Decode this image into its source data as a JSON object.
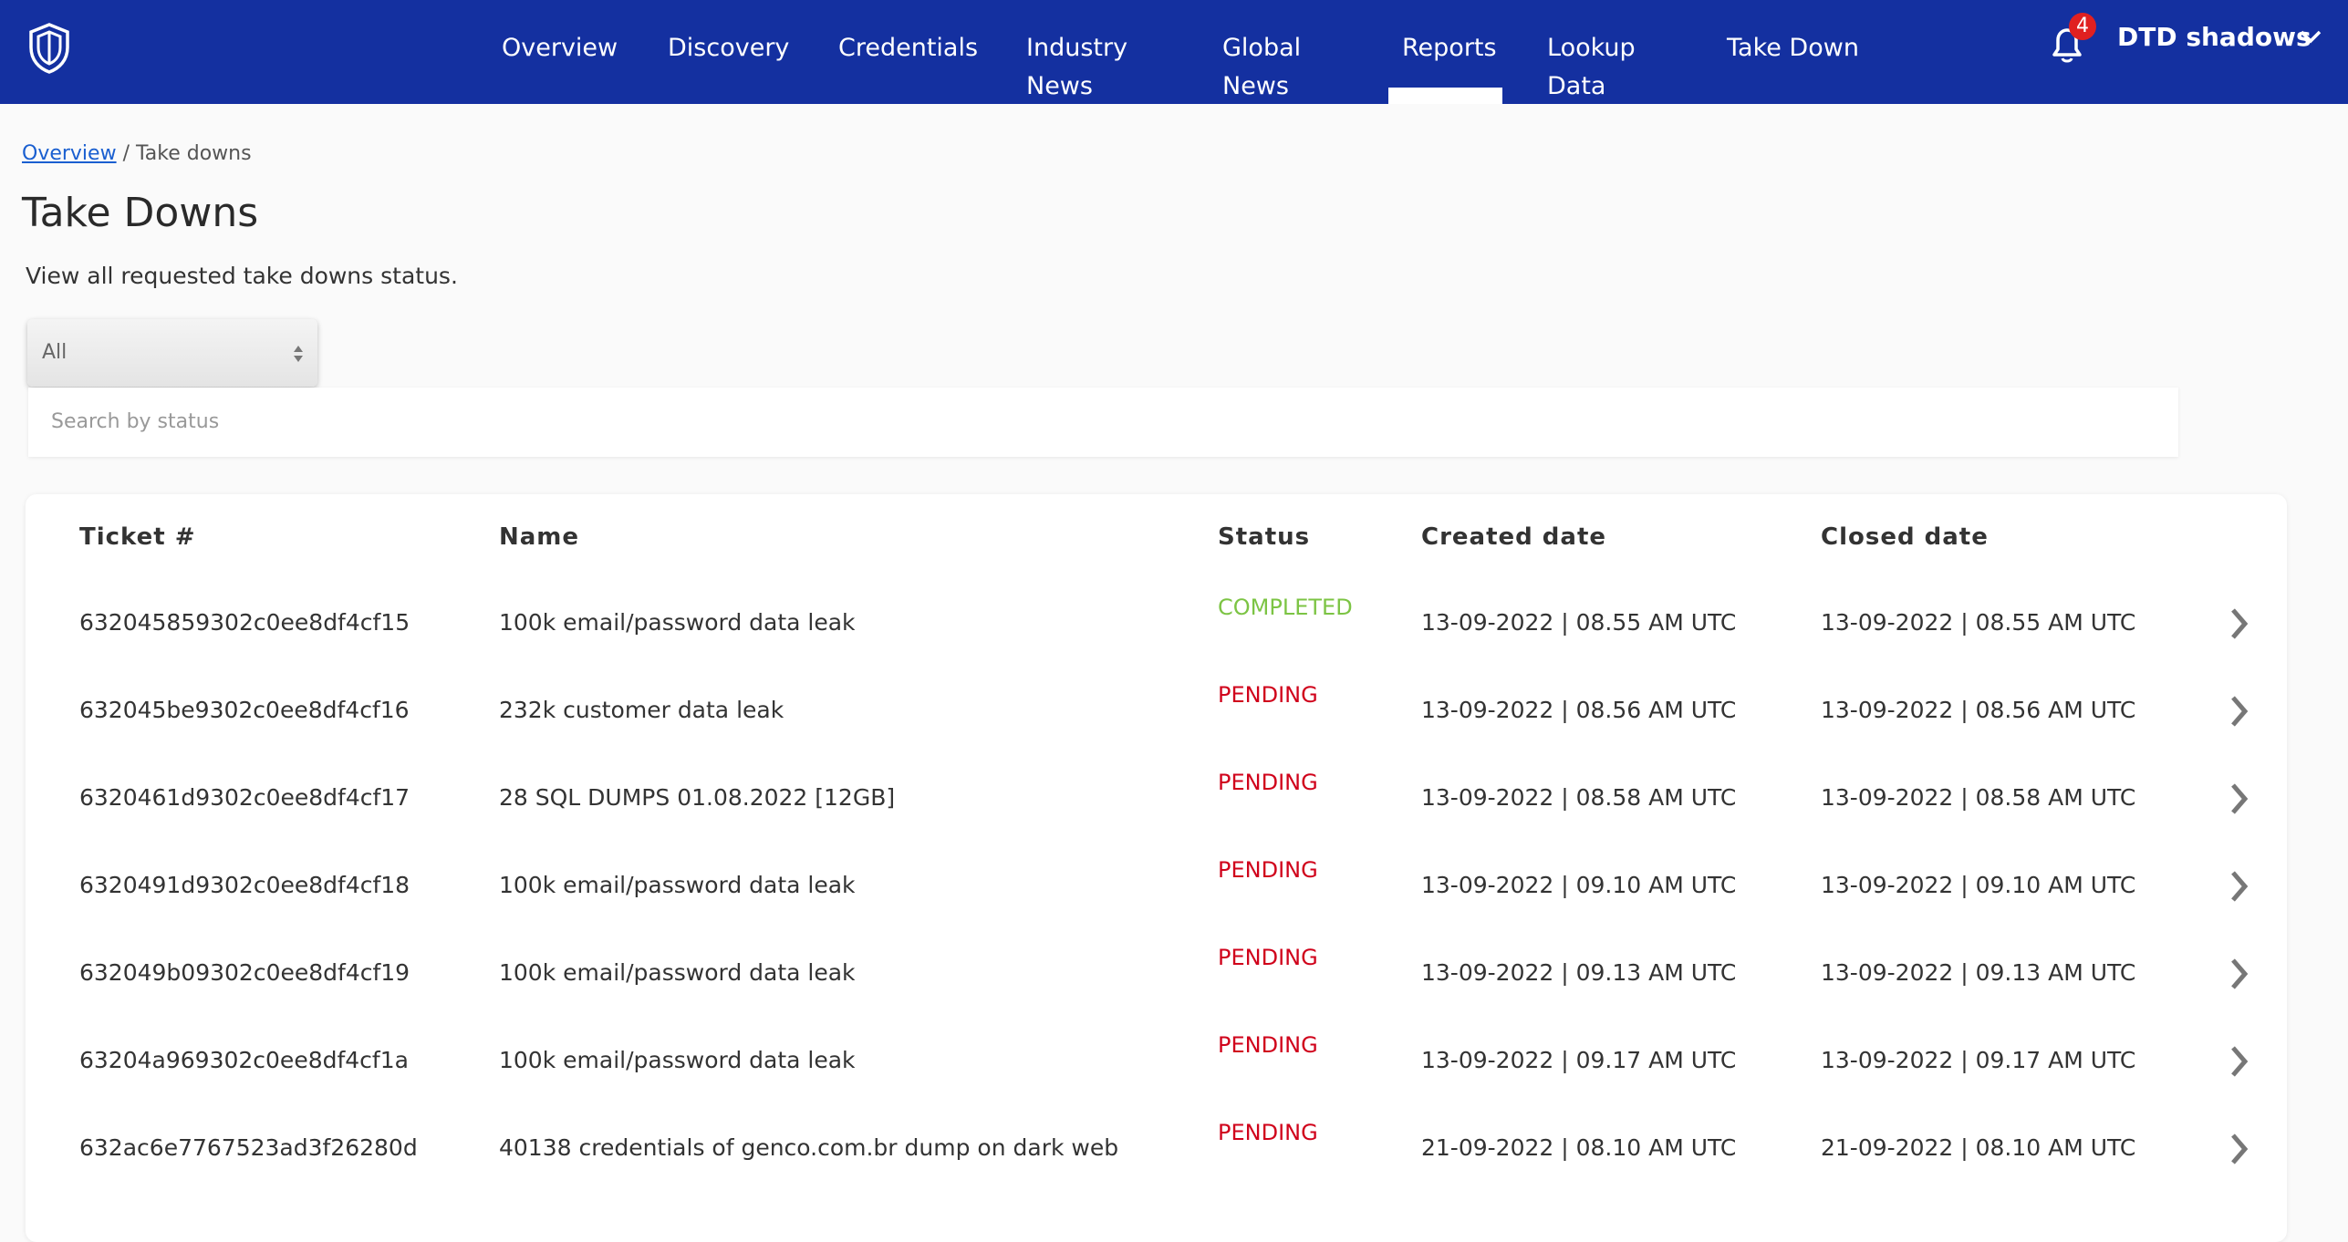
{
  "header": {
    "nav": [
      "Overview",
      "Discovery",
      "Credentials",
      "Industry News",
      "Global News",
      "Reports",
      "Lookup Data",
      "Take Down"
    ],
    "active": "Reports",
    "notifications": "4",
    "user": "DTD shadows"
  },
  "breadcrumb": {
    "link": "Overview",
    "current": "/ Take downs"
  },
  "page": {
    "title": "Take Downs",
    "subtitle": "View all requested take downs status."
  },
  "filter": {
    "selected": "All",
    "search_placeholder": "Search by status"
  },
  "table": {
    "headers": [
      "Ticket #",
      "Name",
      "Status",
      "Created date",
      "Closed date"
    ],
    "rows": [
      {
        "ticket": "632045859302c0ee8df4cf15",
        "name": "100k email/password data leak",
        "status": "COMPLETED",
        "status_color": "#7cc444",
        "created": "13-09-2022 | 08.55 AM UTC",
        "closed": "13-09-2022 | 08.55 AM UTC"
      },
      {
        "ticket": "632045be9302c0ee8df4cf16",
        "name": "232k customer data leak",
        "status": "PENDING",
        "status_color": "#d0021b",
        "created": "13-09-2022 | 08.56 AM UTC",
        "closed": "13-09-2022 | 08.56 AM UTC"
      },
      {
        "ticket": "6320461d9302c0ee8df4cf17",
        "name": "28 SQL DUMPS 01.08.2022 [12GB]",
        "status": "PENDING",
        "status_color": "#d0021b",
        "created": "13-09-2022 | 08.58 AM UTC",
        "closed": "13-09-2022 | 08.58 AM UTC"
      },
      {
        "ticket": "6320491d9302c0ee8df4cf18",
        "name": "100k email/password data leak",
        "status": "PENDING",
        "status_color": "#d0021b",
        "created": "13-09-2022 | 09.10 AM UTC",
        "closed": "13-09-2022 | 09.10 AM UTC"
      },
      {
        "ticket": "632049b09302c0ee8df4cf19",
        "name": "100k email/password data leak",
        "status": "PENDING",
        "status_color": "#d0021b",
        "created": "13-09-2022 | 09.13 AM UTC",
        "closed": "13-09-2022 | 09.13 AM UTC"
      },
      {
        "ticket": "63204a969302c0ee8df4cf1a",
        "name": "100k email/password data leak",
        "status": "PENDING",
        "status_color": "#d0021b",
        "created": "13-09-2022 | 09.17 AM UTC",
        "closed": "13-09-2022 | 09.17 AM UTC"
      },
      {
        "ticket": "632ac6e7767523ad3f26280d",
        "name": "40138 credentials of genco.com.br dump on dark web",
        "status": "PENDING",
        "status_color": "#d0021b",
        "created": "21-09-2022 | 08.10 AM UTC",
        "closed": "21-09-2022 | 08.10 AM UTC"
      }
    ]
  }
}
